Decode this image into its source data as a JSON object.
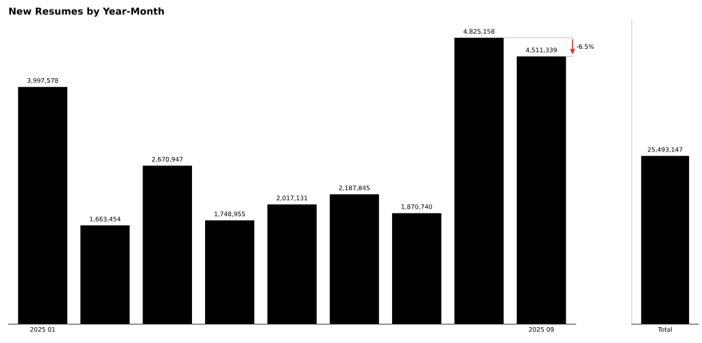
{
  "chart_data": [
    {
      "type": "bar",
      "title": "New Resumes by Year-Month",
      "categories": [
        "2025 01",
        null,
        null,
        null,
        null,
        null,
        null,
        null,
        "2025 09"
      ],
      "values": [
        3997578,
        1663454,
        2670947,
        1748955,
        2017131,
        2187845,
        1870740,
        4825158,
        4511339
      ],
      "value_labels": [
        "3,997,578",
        "1,663,454",
        "2,670,947",
        "1,748,955",
        "2,017,131",
        "2,187,845",
        "1,870,740",
        "4,825,158",
        "4,511,339"
      ],
      "color": "#000000",
      "tick_labels": "x",
      "annotations": [
        "-6.5%"
      ]
    },
    {
      "type": "bar",
      "categories": [
        "Total"
      ],
      "values": [
        25493147
      ],
      "value_labels": [
        "25,493,147"
      ],
      "color": "#000000",
      "tick_labels": "x",
      "ylim": [
        0,
        46000000
      ]
    }
  ]
}
